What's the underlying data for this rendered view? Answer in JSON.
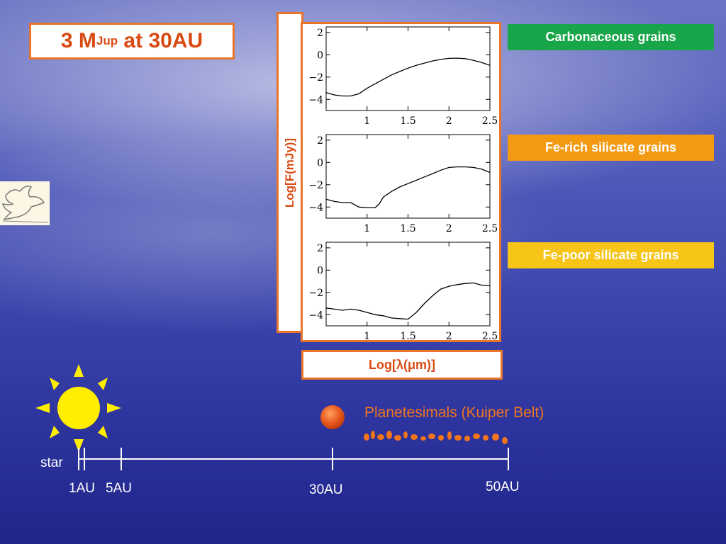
{
  "title": {
    "main": "3 M",
    "sub": "Jup",
    "suffix": " at 30AU"
  },
  "colors": {
    "accent": "#e8752a",
    "text_accent": "#d94a13",
    "carbonaceous": "#19a64a",
    "fe_rich": "#f39a12",
    "fe_poor": "#f7c418",
    "sun": "#ffee00",
    "planet": "#e8561c"
  },
  "chart_data": [
    {
      "type": "line",
      "xlabel": "Log[λ(μm)]",
      "ylabel": "Log[F(mJy)]",
      "xlim": [
        0.5,
        2.5
      ],
      "ylim": [
        -5,
        2.5
      ],
      "xticks": [
        1,
        1.5,
        2,
        2.5
      ],
      "yticks": [
        2,
        0,
        -2,
        -4
      ],
      "series": [
        {
          "x": [
            0.5,
            0.6,
            0.7,
            0.8,
            0.9,
            1.0,
            1.1,
            1.2,
            1.3,
            1.4,
            1.5,
            1.6,
            1.7,
            1.8,
            1.9,
            2.0,
            2.1,
            2.2,
            2.3,
            2.4,
            2.5
          ],
          "values": [
            -3.4,
            -3.6,
            -3.7,
            -3.7,
            -3.5,
            -3.0,
            -2.6,
            -2.2,
            -1.8,
            -1.5,
            -1.2,
            -0.95,
            -0.75,
            -0.55,
            -0.42,
            -0.32,
            -0.3,
            -0.35,
            -0.5,
            -0.7,
            -0.95
          ]
        }
      ]
    },
    {
      "type": "line",
      "xlabel": "Log[λ(μm)]",
      "ylabel": "Log[F(mJy)]",
      "xlim": [
        0.5,
        2.5
      ],
      "ylim": [
        -5,
        2.5
      ],
      "xticks": [
        1,
        1.5,
        2,
        2.5
      ],
      "yticks": [
        2,
        0,
        -2,
        -4
      ],
      "series": [
        {
          "x": [
            0.5,
            0.6,
            0.7,
            0.8,
            0.9,
            1.0,
            1.1,
            1.15,
            1.2,
            1.3,
            1.4,
            1.5,
            1.6,
            1.7,
            1.8,
            1.9,
            2.0,
            2.1,
            2.2,
            2.3,
            2.4,
            2.5
          ],
          "values": [
            -3.3,
            -3.5,
            -3.6,
            -3.6,
            -4.0,
            -4.05,
            -4.05,
            -3.7,
            -3.1,
            -2.6,
            -2.2,
            -1.9,
            -1.6,
            -1.3,
            -1.0,
            -0.7,
            -0.45,
            -0.4,
            -0.4,
            -0.45,
            -0.6,
            -0.9
          ]
        }
      ]
    },
    {
      "type": "line",
      "xlabel": "Log[λ(μm)]",
      "ylabel": "Log[F(mJy)]",
      "xlim": [
        0.5,
        2.5
      ],
      "ylim": [
        -5,
        2.5
      ],
      "xticks": [
        1,
        1.5,
        2,
        2.5
      ],
      "yticks": [
        2,
        0,
        -2,
        -4
      ],
      "series": [
        {
          "x": [
            0.5,
            0.6,
            0.7,
            0.8,
            0.9,
            1.0,
            1.1,
            1.2,
            1.3,
            1.4,
            1.5,
            1.6,
            1.7,
            1.8,
            1.9,
            2.0,
            2.1,
            2.2,
            2.3,
            2.4,
            2.5
          ],
          "values": [
            -3.4,
            -3.5,
            -3.6,
            -3.5,
            -3.6,
            -3.8,
            -4.0,
            -4.1,
            -4.3,
            -4.35,
            -4.4,
            -3.8,
            -3.0,
            -2.3,
            -1.7,
            -1.45,
            -1.3,
            -1.2,
            -1.15,
            -1.35,
            -1.4
          ]
        }
      ]
    }
  ],
  "axis_label_y": "Log[F(mJy)]",
  "axis_label_x": "Log[λ(μm)]",
  "grain_labels": [
    "Carbonaceous grains",
    "Fe-rich silicate grains",
    "Fe-poor silicate grains"
  ],
  "scale": {
    "star_label": "star",
    "label_1au": "1AU",
    "label_5au": "5AU",
    "label_30au": "30AU",
    "label_50au": "50AU"
  },
  "kuiper_label": "Planetesimals (Kuiper Belt)"
}
